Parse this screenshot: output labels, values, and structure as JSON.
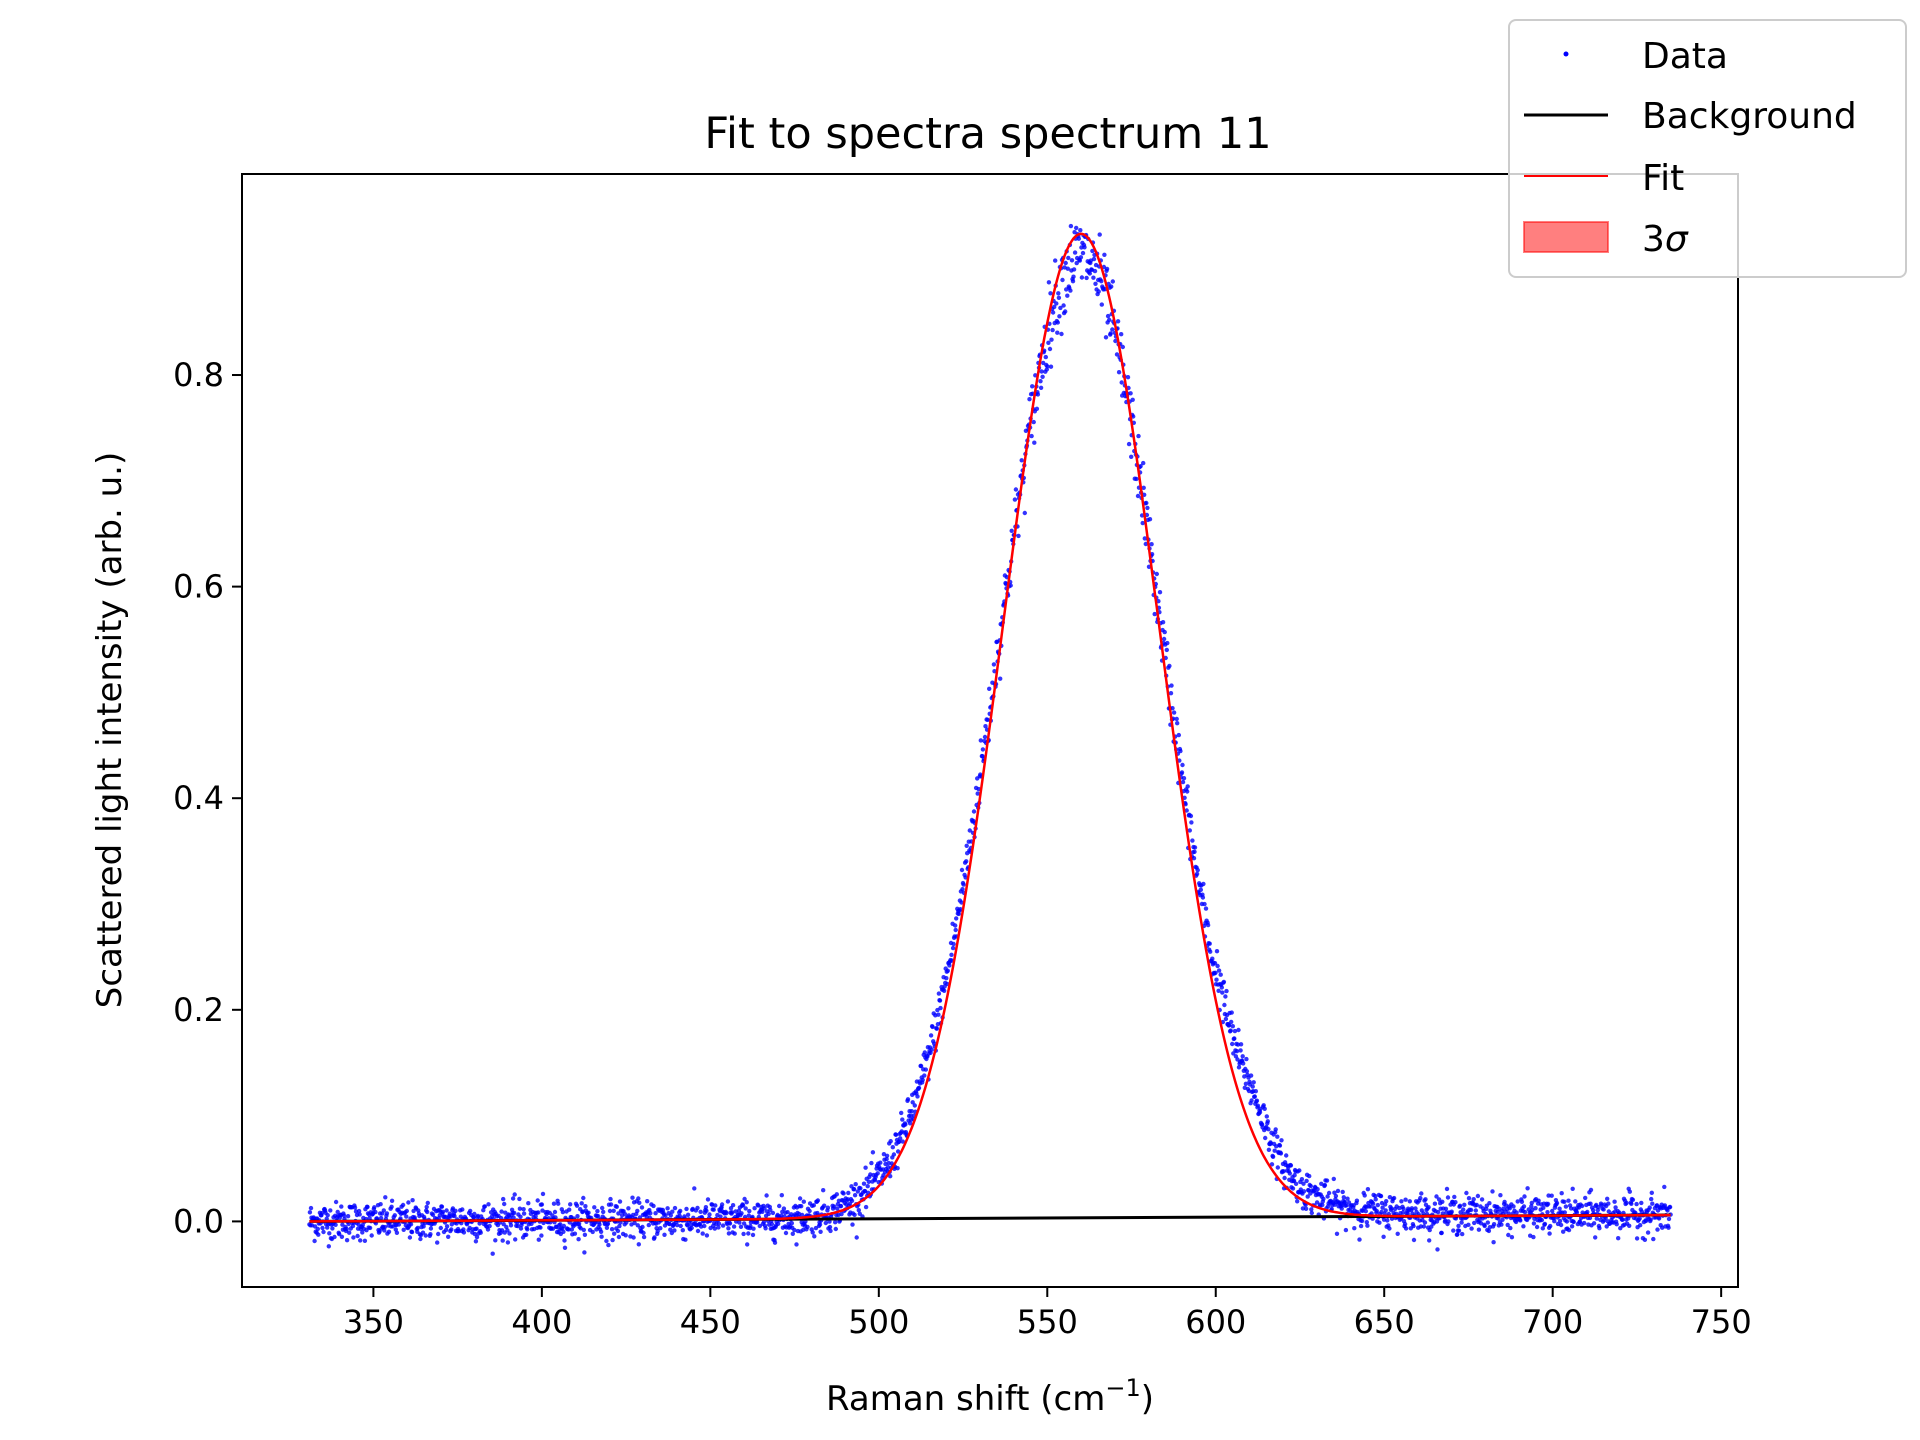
{
  "chart_data": {
    "type": "scatter",
    "title": "Fit to spectra spectrum 11",
    "xlabel": "Raman shift (cm",
    "xlabel_superscript": "−1",
    "xlabel_suffix": ")",
    "ylabel": "Scattered light intensity (arb. u.)",
    "xlim": [
      311,
      755
    ],
    "ylim": [
      -0.062,
      0.99
    ],
    "x_ticks": [
      350,
      400,
      450,
      500,
      550,
      600,
      650,
      700,
      750
    ],
    "y_ticks": [
      0.0,
      0.2,
      0.4,
      0.6,
      0.8
    ],
    "x_tick_labels": [
      "350",
      "400",
      "450",
      "500",
      "550",
      "600",
      "650",
      "700",
      "750"
    ],
    "y_tick_labels": [
      "0.0",
      "0.2",
      "0.4",
      "0.6",
      "0.8"
    ],
    "grid": false,
    "legend_placement": "top-right (outside)",
    "series": [
      {
        "name": "Data",
        "kind": "scatter",
        "color": "#0000ff",
        "x_range": [
          331,
          735
        ],
        "noise": 0.009,
        "peak_center": 560,
        "peak_height": 0.91,
        "peak_sigma": 24,
        "shoulder_center": 612,
        "shoulder_height": 0.015
      },
      {
        "name": "Background",
        "kind": "line",
        "color": "#000000",
        "x": [
          331,
          735
        ],
        "y": [
          0.0,
          0.006
        ]
      },
      {
        "name": "Fit",
        "kind": "line",
        "color": "#ff0000",
        "peak_center": 560,
        "peak_height": 0.93,
        "peak_sigma": 23
      },
      {
        "name": "3",
        "name_symbol": "σ",
        "kind": "band",
        "color": "#ff0000"
      }
    ]
  }
}
